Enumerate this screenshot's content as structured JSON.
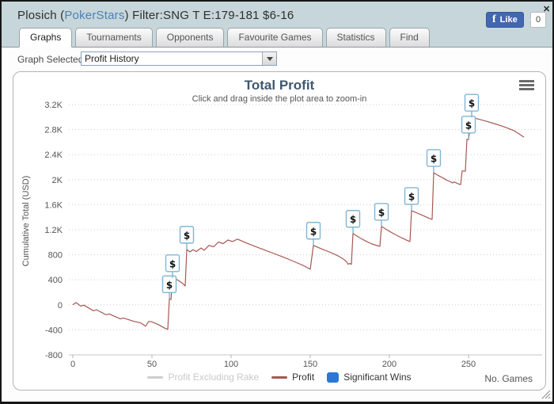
{
  "header": {
    "player_prefix": "Plosich (",
    "site": "PokerStars",
    "suffix": ") Filter:SNG T E:179-181 $6-16",
    "fb_logo": "f",
    "like_label": "Like",
    "like_count": "0",
    "close_icon": "✕"
  },
  "tabs": {
    "items": [
      {
        "label": "Graphs",
        "active": true
      },
      {
        "label": "Tournaments",
        "active": false
      },
      {
        "label": "Opponents",
        "active": false
      },
      {
        "label": "Favourite Games",
        "active": false
      },
      {
        "label": "Statistics",
        "active": false
      },
      {
        "label": "Find",
        "active": false
      }
    ]
  },
  "toolbar": {
    "label": "Graph Selected:",
    "selected": "Profit History"
  },
  "colors": {
    "header_bg": "#c7d6da",
    "fb_blue": "#4267b2",
    "link_blue": "#4c80b8",
    "chart_title": "#3e576f",
    "flag_border": "#82b5d2",
    "grid": "#cfcfcf"
  },
  "chart_data": {
    "type": "line",
    "title": "Total Profit",
    "subtitle": "Click and drag inside the plot area to zoom-in",
    "xlabel": "No. Games",
    "ylabel": "Cumulative Total (USD)",
    "xlim": [
      0,
      296.5
    ],
    "ylim": [
      -800,
      3200
    ],
    "x_ticks": [
      0,
      50,
      100,
      150,
      200,
      250
    ],
    "y_ticks": [
      -800,
      -400,
      0,
      400,
      800,
      1200,
      1600,
      2000,
      2400,
      2800,
      3200
    ],
    "y_tick_labels": [
      "-800",
      "-400",
      "0",
      "400",
      "800",
      "1.2K",
      "1.6K",
      "2K",
      "2.4K",
      "2.8K",
      "3.2K"
    ],
    "grid": "horizontal-dotted",
    "legend_position": "bottom",
    "series": [
      {
        "name": "Profit Excluding Rake",
        "color": "#cfcfcf",
        "visible": false,
        "swatch": "line",
        "points": []
      },
      {
        "name": "Profit",
        "color": "#a65853",
        "visible": true,
        "swatch": "line",
        "points": [
          [
            0,
            0
          ],
          [
            2,
            35
          ],
          [
            5,
            -20
          ],
          [
            7,
            -5
          ],
          [
            13,
            -95
          ],
          [
            15,
            -80
          ],
          [
            21,
            -160
          ],
          [
            23,
            -145
          ],
          [
            30,
            -225
          ],
          [
            32,
            -210
          ],
          [
            38,
            -260
          ],
          [
            43,
            -290
          ],
          [
            46,
            -340
          ],
          [
            48,
            -265
          ],
          [
            50,
            -272
          ],
          [
            54,
            -315
          ],
          [
            58,
            -372
          ],
          [
            60,
            -392
          ],
          [
            61,
            95
          ],
          [
            62,
            85
          ],
          [
            63,
            430
          ],
          [
            66,
            400
          ],
          [
            69,
            350
          ],
          [
            71,
            300
          ],
          [
            72,
            885
          ],
          [
            74,
            845
          ],
          [
            76,
            882
          ],
          [
            78,
            852
          ],
          [
            81,
            908
          ],
          [
            83,
            872
          ],
          [
            86,
            950
          ],
          [
            89,
            928
          ],
          [
            92,
            1002
          ],
          [
            95,
            978
          ],
          [
            98,
            1035
          ],
          [
            101,
            1012
          ],
          [
            104,
            1050
          ],
          [
            109,
            995
          ],
          [
            115,
            935
          ],
          [
            121,
            878
          ],
          [
            127,
            820
          ],
          [
            133,
            762
          ],
          [
            139,
            700
          ],
          [
            145,
            635
          ],
          [
            150,
            570
          ],
          [
            152,
            950
          ],
          [
            157,
            895
          ],
          [
            162,
            845
          ],
          [
            167,
            790
          ],
          [
            171,
            730
          ],
          [
            173,
            685
          ],
          [
            174,
            648
          ],
          [
            175,
            662
          ],
          [
            176,
            645
          ],
          [
            177,
            1140
          ],
          [
            181,
            1075
          ],
          [
            185,
            1020
          ],
          [
            189,
            972
          ],
          [
            193,
            940
          ],
          [
            194,
            936
          ],
          [
            195,
            1252
          ],
          [
            199,
            1190
          ],
          [
            203,
            1132
          ],
          [
            207,
            1080
          ],
          [
            211,
            1032
          ],
          [
            213,
            1012
          ],
          [
            214,
            1505
          ],
          [
            218,
            1462
          ],
          [
            222,
            1418
          ],
          [
            225,
            1385
          ],
          [
            227,
            1366
          ],
          [
            228,
            2112
          ],
          [
            231,
            2065
          ],
          [
            234,
            2025
          ],
          [
            236,
            1995
          ],
          [
            238,
            1972
          ],
          [
            240,
            1948
          ],
          [
            241,
            1965
          ],
          [
            243,
            1938
          ],
          [
            245,
            1920
          ],
          [
            246,
            2140
          ],
          [
            248,
            2135
          ],
          [
            249,
            2645
          ],
          [
            250,
            2640
          ],
          [
            252,
            2995
          ],
          [
            256,
            2970
          ],
          [
            261,
            2935
          ],
          [
            267,
            2890
          ],
          [
            273,
            2840
          ],
          [
            279,
            2780
          ],
          [
            285,
            2680
          ]
        ]
      },
      {
        "name": "Significant Wins",
        "color": "#2b78d4",
        "visible": true,
        "swatch": "box",
        "type": "flags",
        "flag_glyph": "$",
        "points": [
          [
            61,
            95
          ],
          [
            63,
            430
          ],
          [
            72,
            885
          ],
          [
            152,
            950
          ],
          [
            177,
            1140
          ],
          [
            195,
            1252
          ],
          [
            214,
            1505
          ],
          [
            228,
            2112
          ],
          [
            250,
            2645
          ],
          [
            252,
            2995
          ]
        ]
      }
    ]
  }
}
